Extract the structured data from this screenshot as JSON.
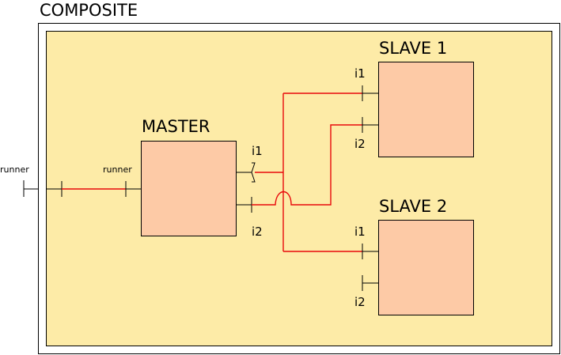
{
  "composite": {
    "title": "COMPOSITE"
  },
  "runner": {
    "outer_label": "runner",
    "inner_label": "runner"
  },
  "master": {
    "title": "MASTER",
    "port_i1": "i1",
    "port_i2": "i2"
  },
  "slave1": {
    "title": "SLAVE 1",
    "port_i1": "i1",
    "port_i2": "i2"
  },
  "slave2": {
    "title": "SLAVE 2",
    "port_i1": "i1",
    "port_i2": "i2"
  },
  "colors": {
    "composite_fill": "#fdeba7",
    "component_fill": "#fdcaa6",
    "wire": "#e8090b",
    "stroke": "#000000"
  }
}
